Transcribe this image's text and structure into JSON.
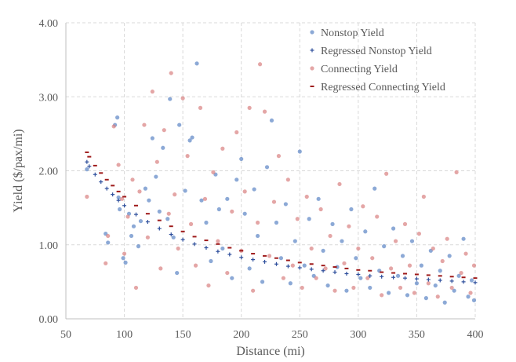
{
  "chart_data": {
    "type": "scatter",
    "title": "",
    "xlabel": "Distance (mi)",
    "ylabel": "Yield ($/pax/mi)",
    "xlim": [
      50,
      400
    ],
    "ylim": [
      0,
      4
    ],
    "x_ticks": [
      "50",
      "100",
      "150",
      "200",
      "250",
      "300",
      "350",
      "400"
    ],
    "y_ticks": [
      "0.00",
      "1.00",
      "2.00",
      "3.00",
      "4.00"
    ],
    "grid": true,
    "legend_position": "top-right",
    "series": [
      {
        "name": "Nonstop Yield",
        "marker": "circle",
        "color": "#5b85c4",
        "points": [
          [
            68,
            2.02
          ],
          [
            84,
            1.15
          ],
          [
            86,
            1.03
          ],
          [
            92,
            2.62
          ],
          [
            94,
            2.72
          ],
          [
            95,
            1.64
          ],
          [
            96,
            1.48
          ],
          [
            99,
            0.82
          ],
          [
            101,
            0.76
          ],
          [
            104,
            1.42
          ],
          [
            106,
            1.12
          ],
          [
            108,
            1.25
          ],
          [
            112,
            0.98
          ],
          [
            114,
            1.32
          ],
          [
            118,
            1.76
          ],
          [
            121,
            1.6
          ],
          [
            124,
            2.44
          ],
          [
            127,
            1.92
          ],
          [
            130,
            1.45
          ],
          [
            133,
            2.31
          ],
          [
            137,
            1.35
          ],
          [
            139,
            2.97
          ],
          [
            142,
            1.1
          ],
          [
            145,
            0.62
          ],
          [
            147,
            2.62
          ],
          [
            152,
            1.73
          ],
          [
            156,
            2.41
          ],
          [
            158,
            2.45
          ],
          [
            162,
            3.45
          ],
          [
            166,
            1.6
          ],
          [
            170,
            1.3
          ],
          [
            174,
            0.78
          ],
          [
            178,
            1.95
          ],
          [
            181,
            1.48
          ],
          [
            184,
            0.95
          ],
          [
            188,
            1.62
          ],
          [
            192,
            0.55
          ],
          [
            196,
            1.88
          ],
          [
            200,
            2.16
          ],
          [
            203,
            1.42
          ],
          [
            207,
            0.68
          ],
          [
            211,
            1.75
          ],
          [
            214,
            1.12
          ],
          [
            218,
            0.5
          ],
          [
            222,
            2.05
          ],
          [
            226,
            2.68
          ],
          [
            230,
            1.3
          ],
          [
            234,
            0.82
          ],
          [
            238,
            1.55
          ],
          [
            242,
            0.48
          ],
          [
            246,
            1.05
          ],
          [
            250,
            2.26
          ],
          [
            254,
            0.72
          ],
          [
            258,
            1.35
          ],
          [
            262,
            0.58
          ],
          [
            266,
            1.62
          ],
          [
            270,
            0.92
          ],
          [
            274,
            0.45
          ],
          [
            278,
            1.28
          ],
          [
            282,
            0.7
          ],
          [
            286,
            1.05
          ],
          [
            290,
            0.38
          ],
          [
            294,
            1.48
          ],
          [
            298,
            0.82
          ],
          [
            302,
            0.55
          ],
          [
            306,
            1.18
          ],
          [
            310,
            0.42
          ],
          [
            314,
            1.76
          ],
          [
            318,
            0.65
          ],
          [
            322,
            0.98
          ],
          [
            326,
            0.35
          ],
          [
            330,
            1.22
          ],
          [
            334,
            0.58
          ],
          [
            338,
            0.85
          ],
          [
            342,
            0.32
          ],
          [
            346,
            1.05
          ],
          [
            350,
            0.48
          ],
          [
            354,
            0.72
          ],
          [
            358,
            0.28
          ],
          [
            362,
            0.92
          ],
          [
            366,
            0.45
          ],
          [
            370,
            0.65
          ],
          [
            374,
            0.22
          ],
          [
            378,
            0.85
          ],
          [
            382,
            0.38
          ],
          [
            386,
            0.58
          ],
          [
            390,
            1.08
          ],
          [
            394,
            0.3
          ],
          [
            397,
            0.52
          ],
          [
            399,
            0.25
          ]
        ]
      },
      {
        "name": "Regressed Nonstop Yield",
        "marker": "plus",
        "color": "#2e4f9c",
        "points": [
          [
            68,
            2.12
          ],
          [
            70,
            2.06
          ],
          [
            75,
            1.95
          ],
          [
            80,
            1.85
          ],
          [
            85,
            1.76
          ],
          [
            90,
            1.68
          ],
          [
            95,
            1.6
          ],
          [
            100,
            1.53
          ],
          [
            110,
            1.41
          ],
          [
            120,
            1.31
          ],
          [
            130,
            1.22
          ],
          [
            140,
            1.14
          ],
          [
            150,
            1.07
          ],
          [
            160,
            1.01
          ],
          [
            170,
            0.96
          ],
          [
            180,
            0.91
          ],
          [
            190,
            0.87
          ],
          [
            200,
            0.83
          ],
          [
            210,
            0.8
          ],
          [
            220,
            0.77
          ],
          [
            230,
            0.74
          ],
          [
            240,
            0.71
          ],
          [
            250,
            0.69
          ],
          [
            260,
            0.67
          ],
          [
            270,
            0.65
          ],
          [
            280,
            0.63
          ],
          [
            290,
            0.61
          ],
          [
            300,
            0.6
          ],
          [
            310,
            0.58
          ],
          [
            320,
            0.57
          ],
          [
            330,
            0.56
          ],
          [
            340,
            0.55
          ],
          [
            350,
            0.54
          ],
          [
            360,
            0.53
          ],
          [
            370,
            0.52
          ],
          [
            380,
            0.51
          ],
          [
            390,
            0.5
          ],
          [
            400,
            0.49
          ]
        ]
      },
      {
        "name": "Connecting Yield",
        "marker": "circle",
        "color": "#d98080",
        "points": [
          [
            68,
            1.65
          ],
          [
            84,
            0.75
          ],
          [
            86,
            1.12
          ],
          [
            91,
            2.6
          ],
          [
            95,
            2.08
          ],
          [
            98,
            1.62
          ],
          [
            100,
            0.88
          ],
          [
            103,
            1.38
          ],
          [
            107,
            1.88
          ],
          [
            110,
            0.42
          ],
          [
            113,
            1.72
          ],
          [
            117,
            2.62
          ],
          [
            120,
            1.1
          ],
          [
            124,
            3.07
          ],
          [
            128,
            2.12
          ],
          [
            131,
            0.68
          ],
          [
            134,
            2.55
          ],
          [
            138,
            1.42
          ],
          [
            140,
            3.32
          ],
          [
            143,
            1.68
          ],
          [
            146,
            0.95
          ],
          [
            150,
            2.98
          ],
          [
            154,
            2.2
          ],
          [
            157,
            1.28
          ],
          [
            161,
            0.72
          ],
          [
            165,
            2.85
          ],
          [
            169,
            1.62
          ],
          [
            172,
            0.45
          ],
          [
            176,
            1.98
          ],
          [
            180,
            1.05
          ],
          [
            184,
            2.3
          ],
          [
            188,
            0.62
          ],
          [
            192,
            1.45
          ],
          [
            196,
            2.52
          ],
          [
            200,
            0.92
          ],
          [
            203,
            1.72
          ],
          [
            207,
            2.85
          ],
          [
            210,
            0.38
          ],
          [
            214,
            1.3
          ],
          [
            216,
            3.44
          ],
          [
            220,
            2.8
          ],
          [
            224,
            0.85
          ],
          [
            228,
            1.58
          ],
          [
            232,
            2.2
          ],
          [
            236,
            0.55
          ],
          [
            240,
            1.88
          ],
          [
            244,
            0.72
          ],
          [
            248,
            1.35
          ],
          [
            252,
            0.42
          ],
          [
            256,
            1.65
          ],
          [
            260,
            0.95
          ],
          [
            264,
            0.55
          ],
          [
            268,
            1.48
          ],
          [
            272,
            0.68
          ],
          [
            276,
            1.12
          ],
          [
            280,
            0.38
          ],
          [
            284,
            1.82
          ],
          [
            288,
            0.75
          ],
          [
            292,
            1.25
          ],
          [
            296,
            0.42
          ],
          [
            300,
            0.95
          ],
          [
            304,
            1.52
          ],
          [
            308,
            0.55
          ],
          [
            312,
            0.82
          ],
          [
            316,
            1.38
          ],
          [
            320,
            0.32
          ],
          [
            324,
            1.96
          ],
          [
            328,
            0.68
          ],
          [
            332,
            1.05
          ],
          [
            336,
            0.42
          ],
          [
            340,
            1.28
          ],
          [
            344,
            0.72
          ],
          [
            348,
            0.35
          ],
          [
            352,
            1.15
          ],
          [
            356,
            1.65
          ],
          [
            360,
            0.48
          ],
          [
            364,
            0.95
          ],
          [
            368,
            0.3
          ],
          [
            372,
            0.78
          ],
          [
            376,
            1.08
          ],
          [
            380,
            0.42
          ],
          [
            384,
            1.98
          ],
          [
            388,
            0.62
          ],
          [
            392,
            0.88
          ],
          [
            396,
            0.35
          ],
          [
            399,
            0.72
          ]
        ]
      },
      {
        "name": "Regressed Connecting Yield",
        "marker": "dash",
        "color": "#9e1a1a",
        "points": [
          [
            68,
            2.25
          ],
          [
            70,
            2.19
          ],
          [
            75,
            2.07
          ],
          [
            80,
            1.97
          ],
          [
            85,
            1.88
          ],
          [
            90,
            1.8
          ],
          [
            95,
            1.72
          ],
          [
            100,
            1.65
          ],
          [
            110,
            1.53
          ],
          [
            120,
            1.42
          ],
          [
            130,
            1.33
          ],
          [
            140,
            1.25
          ],
          [
            150,
            1.18
          ],
          [
            160,
            1.11
          ],
          [
            170,
            1.06
          ],
          [
            180,
            1.01
          ],
          [
            190,
            0.96
          ],
          [
            200,
            0.92
          ],
          [
            210,
            0.88
          ],
          [
            220,
            0.85
          ],
          [
            230,
            0.82
          ],
          [
            240,
            0.79
          ],
          [
            250,
            0.76
          ],
          [
            260,
            0.74
          ],
          [
            270,
            0.72
          ],
          [
            280,
            0.7
          ],
          [
            290,
            0.68
          ],
          [
            300,
            0.66
          ],
          [
            310,
            0.65
          ],
          [
            320,
            0.63
          ],
          [
            330,
            0.62
          ],
          [
            340,
            0.61
          ],
          [
            350,
            0.6
          ],
          [
            360,
            0.59
          ],
          [
            370,
            0.58
          ],
          [
            380,
            0.57
          ],
          [
            390,
            0.56
          ],
          [
            400,
            0.55
          ]
        ]
      }
    ]
  }
}
